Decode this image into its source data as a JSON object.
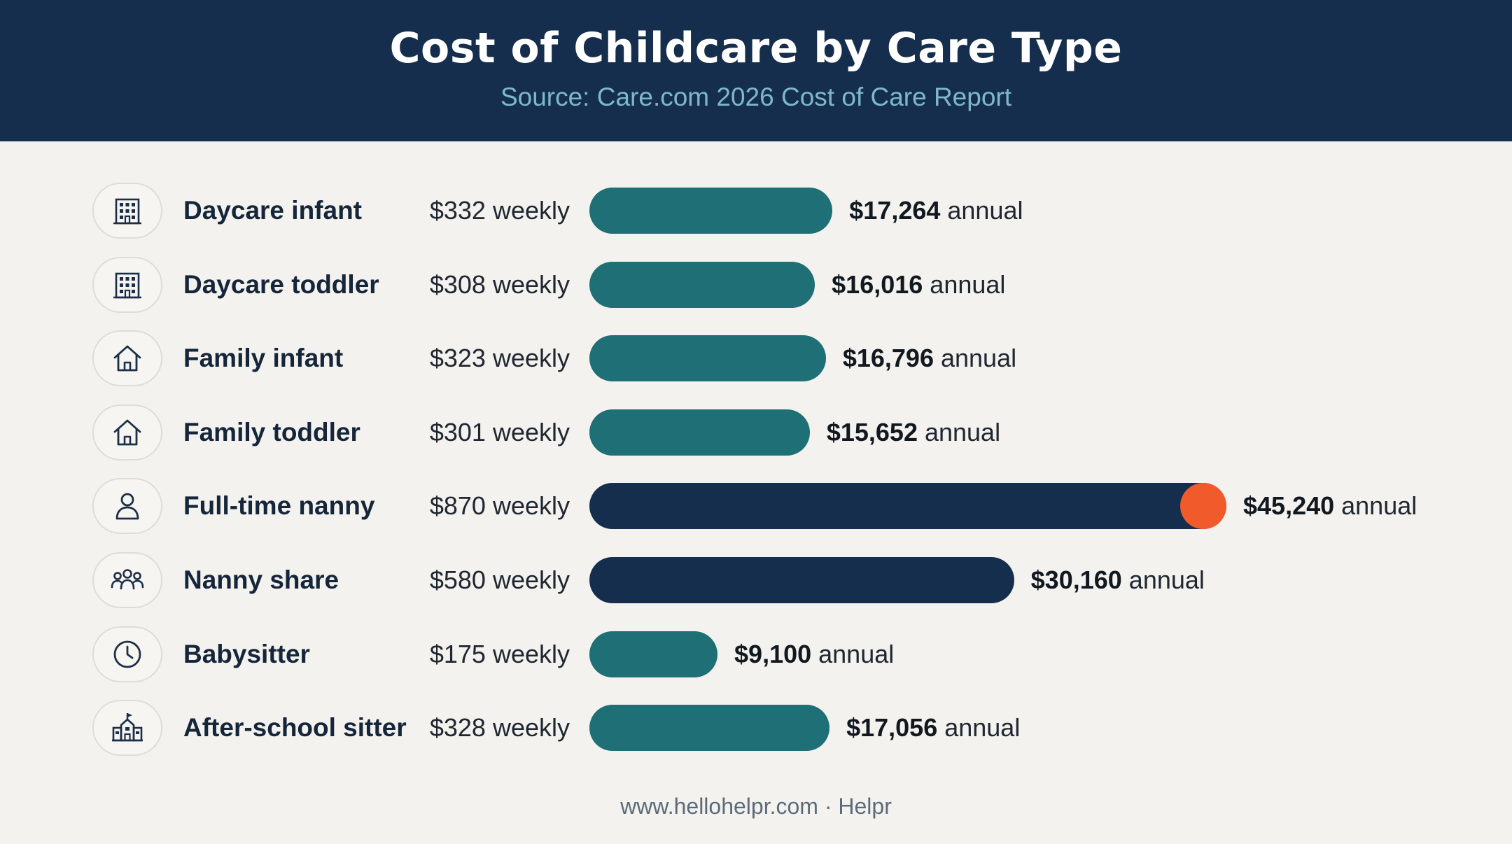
{
  "header": {
    "title": "Cost of Childcare by Care Type",
    "subtitle": "Source: Care.com 2026 Cost of Care Report"
  },
  "footer": {
    "text": "www.hellohelpr.com · Helpr"
  },
  "colors": {
    "header_bg": "#152e4e",
    "teal_bar": "#1e6f76",
    "navy_bar": "#152e4e",
    "highlight_dot": "#f15a2b"
  },
  "chart_data": {
    "type": "bar",
    "orientation": "horizontal",
    "title": "Cost of Childcare by Care Type",
    "subtitle": "Source: Care.com 2026 Cost of Care Report",
    "categories": [
      "Daycare infant",
      "Daycare toddler",
      "Family infant",
      "Family toddler",
      "Full-time nanny",
      "Nanny share",
      "Babysitter",
      "After-school sitter"
    ],
    "icons": [
      "building-icon",
      "building-icon",
      "house-icon",
      "house-icon",
      "person-icon",
      "group-icon",
      "clock-icon",
      "school-icon"
    ],
    "weekly_labels": [
      "$332 weekly",
      "$308 weekly",
      "$323 weekly",
      "$301 weekly",
      "$870 weekly",
      "$580 weekly",
      "$175 weekly",
      "$328 weekly"
    ],
    "values": [
      17264,
      16016,
      16796,
      15652,
      45240,
      30160,
      9100,
      17056
    ],
    "annual_values": [
      "$17,264",
      "$16,016",
      "$16,796",
      "$15,652",
      "$45,240",
      "$30,160",
      "$9,100",
      "$17,056"
    ],
    "annual_suffix": "annual",
    "bar_colors": [
      "#1e6f76",
      "#1e6f76",
      "#1e6f76",
      "#1e6f76",
      "#152e4e",
      "#152e4e",
      "#1e6f76",
      "#1e6f76"
    ],
    "highlight_index": 4,
    "legend": "none",
    "grid": false
  }
}
